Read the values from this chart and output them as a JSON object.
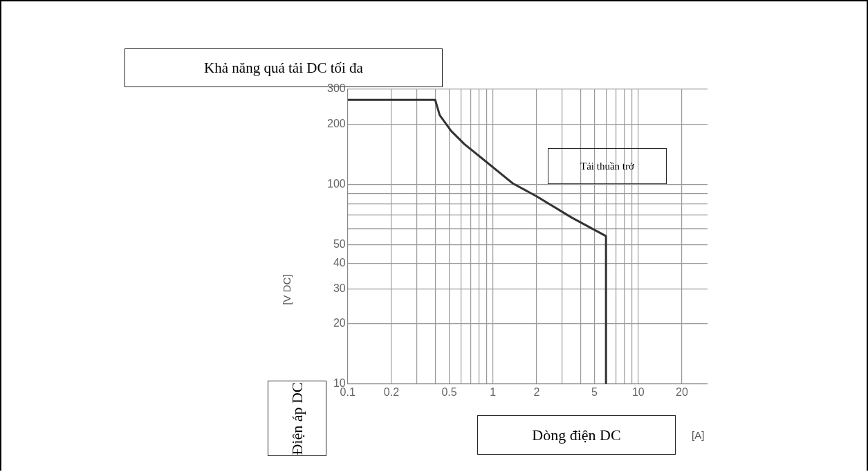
{
  "chart_data": {
    "type": "line",
    "title": "Khả năng quá tải DC tối đa",
    "xlabel": "Dòng điện DC",
    "ylabel": "Điện áp DC",
    "annotations": [
      "Tải thuần trở",
      "[V DC]",
      "[A]"
    ],
    "series": [
      {
        "color": "#333333",
        "x": [
          0.1,
          0.4,
          0.43,
          0.515,
          0.635,
          0.86,
          1.37,
          2.0,
          3.5,
          6.0,
          6.0
        ],
        "values": [
          265,
          265,
          222,
          185,
          159,
          133,
          101,
          87,
          68,
          55,
          10
        ]
      }
    ],
    "log": "xy",
    "xlim": [
      0.1,
      30
    ],
    "ylim": [
      10,
      300
    ],
    "xticks": [
      0.1,
      0.2,
      {
        "value": 0.3,
        "label": null
      },
      {
        "value": 0.4,
        "label": null
      },
      0.5,
      {
        "value": 0.6,
        "label": null
      },
      {
        "value": 0.7,
        "label": null
      },
      {
        "value": 0.8,
        "label": null
      },
      {
        "value": 0.9,
        "label": null
      },
      1,
      2,
      {
        "value": 3,
        "label": null
      },
      {
        "value": 4,
        "label": null
      },
      5,
      {
        "value": 6,
        "label": null
      },
      {
        "value": 7,
        "label": null
      },
      {
        "value": 8,
        "label": null
      },
      {
        "value": 9,
        "label": null
      },
      10,
      20
    ],
    "yticks": [
      10,
      20,
      30,
      40,
      50,
      {
        "value": 60,
        "label": null
      },
      {
        "value": 70,
        "label": null
      },
      {
        "value": 80,
        "label": null
      },
      {
        "value": 90,
        "label": null
      },
      100,
      200,
      300
    ],
    "grid": true,
    "line_style": "solid",
    "marker": "none"
  }
}
